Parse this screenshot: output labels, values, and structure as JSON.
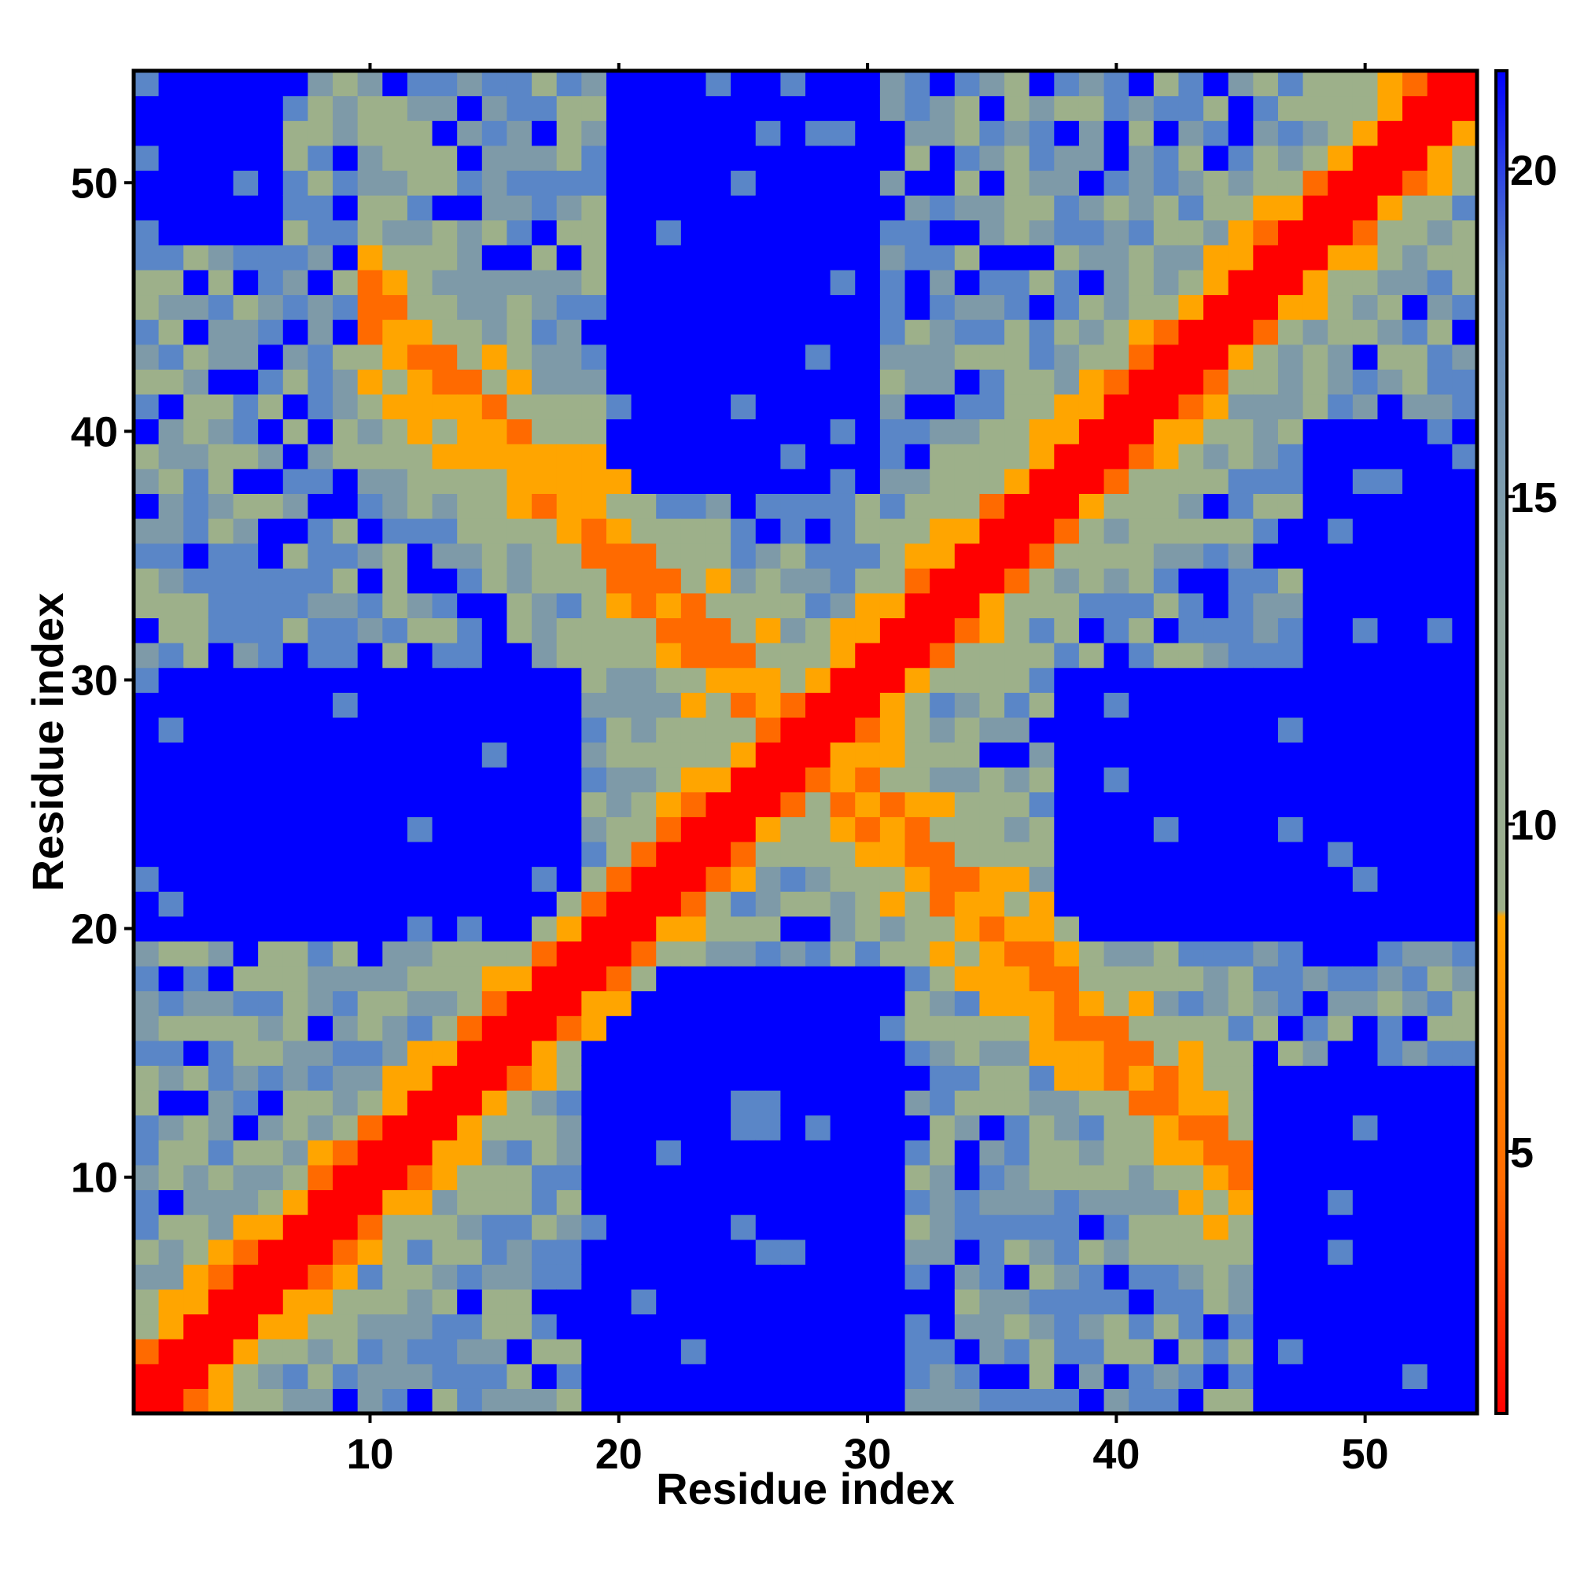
{
  "chart_data": {
    "type": "heatmap",
    "title": "",
    "xlabel": "Residue index",
    "ylabel": "Residue index",
    "n": 54,
    "x_range": [
      1,
      54
    ],
    "y_range": [
      1,
      54
    ],
    "x_ticks": [
      10,
      20,
      30,
      40,
      50
    ],
    "y_ticks": [
      10,
      20,
      30,
      40,
      50
    ],
    "colorbar": {
      "range": [
        1,
        21.5
      ],
      "ticks": [
        5,
        10,
        15,
        20
      ]
    },
    "cutoff_band": {
      "red_max": 4.5,
      "orange_max": 8.0,
      "gray_max": 18.0
    },
    "description_colors": {
      "near": "#ff0000",
      "orange": "#ffa500",
      "mid": "#9db08a",
      "far": "#5a86c7",
      "none": "#0000ff"
    },
    "anti_diagonal_band": {
      "center_sum": 55,
      "width": 5,
      "x_range": [
        10,
        45
      ]
    },
    "blue_regions": [
      {
        "x": [
          19,
          31
        ],
        "y": [
          1,
          18
        ]
      },
      {
        "x": [
          20,
          30
        ],
        "y": [
          38,
          54
        ]
      },
      {
        "x": [
          1,
          18
        ],
        "y": [
          20,
          30
        ]
      },
      {
        "x": [
          38,
          54
        ],
        "y": [
          20,
          30
        ]
      },
      {
        "x": [
          46,
          54
        ],
        "y": [
          1,
          14
        ]
      },
      {
        "x": [
          48,
          54
        ],
        "y": [
          28,
          40
        ]
      },
      {
        "x": [
          1,
          6
        ],
        "y": [
          48,
          54
        ]
      }
    ]
  }
}
